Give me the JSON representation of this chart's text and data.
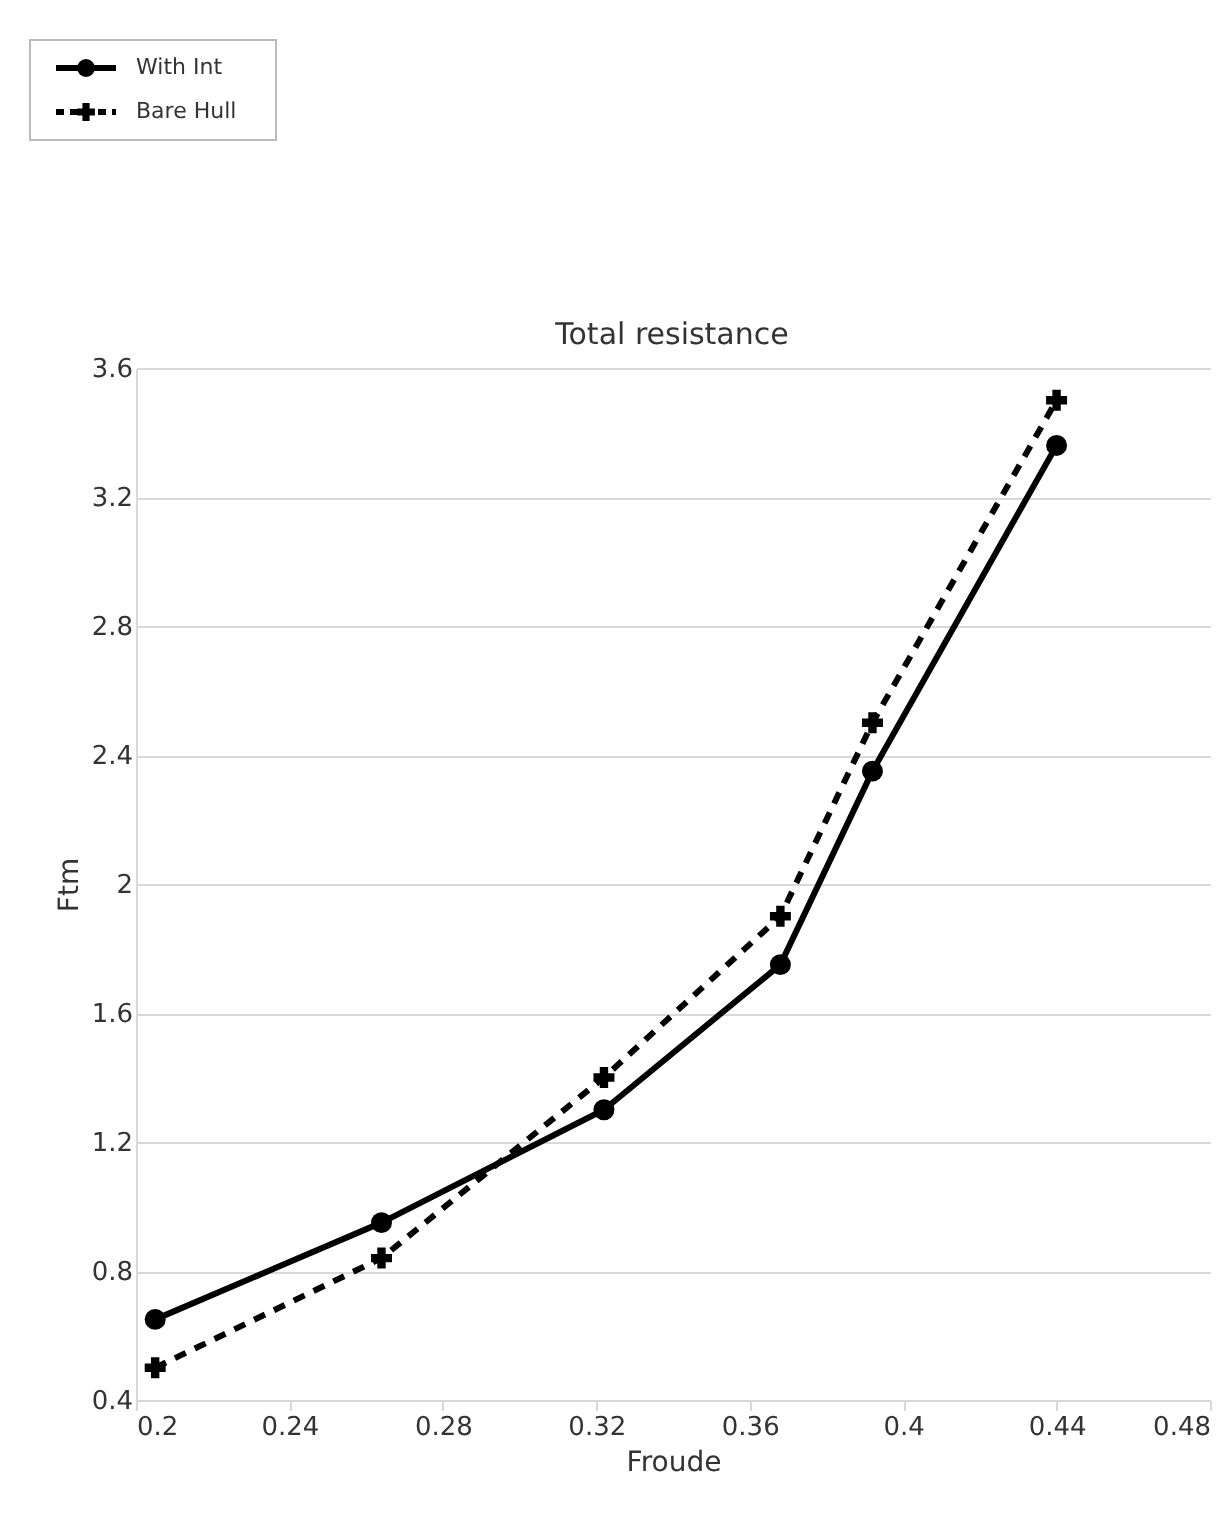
{
  "chart_data": {
    "type": "line",
    "title": "Total resistance",
    "xlabel": "Froude",
    "ylabel": "Ftm",
    "x": [
      0.205,
      0.264,
      0.322,
      0.368,
      0.392,
      0.44
    ],
    "series": [
      {
        "name": "With Int",
        "color": "#000000",
        "marker": "circle",
        "line_style": "solid",
        "values": [
          0.65,
          0.95,
          1.3,
          1.75,
          2.35,
          3.36
        ]
      },
      {
        "name": "Bare Hull",
        "color": "#000000",
        "marker": "cross",
        "line_style": "dashed",
        "values": [
          0.5,
          0.84,
          1.4,
          1.9,
          2.5,
          3.5
        ]
      }
    ],
    "xlim": [
      0.2,
      0.48
    ],
    "xticks": [
      0.2,
      0.24,
      0.28,
      0.32,
      0.36,
      0.4,
      0.44,
      0.48
    ],
    "ylim": [
      0.4,
      3.6
    ],
    "yticks": [
      0.4,
      0.8,
      1.2,
      1.6,
      2,
      2.4,
      2.8,
      3.2,
      3.6
    ],
    "grid": "y",
    "legend": "top left"
  }
}
